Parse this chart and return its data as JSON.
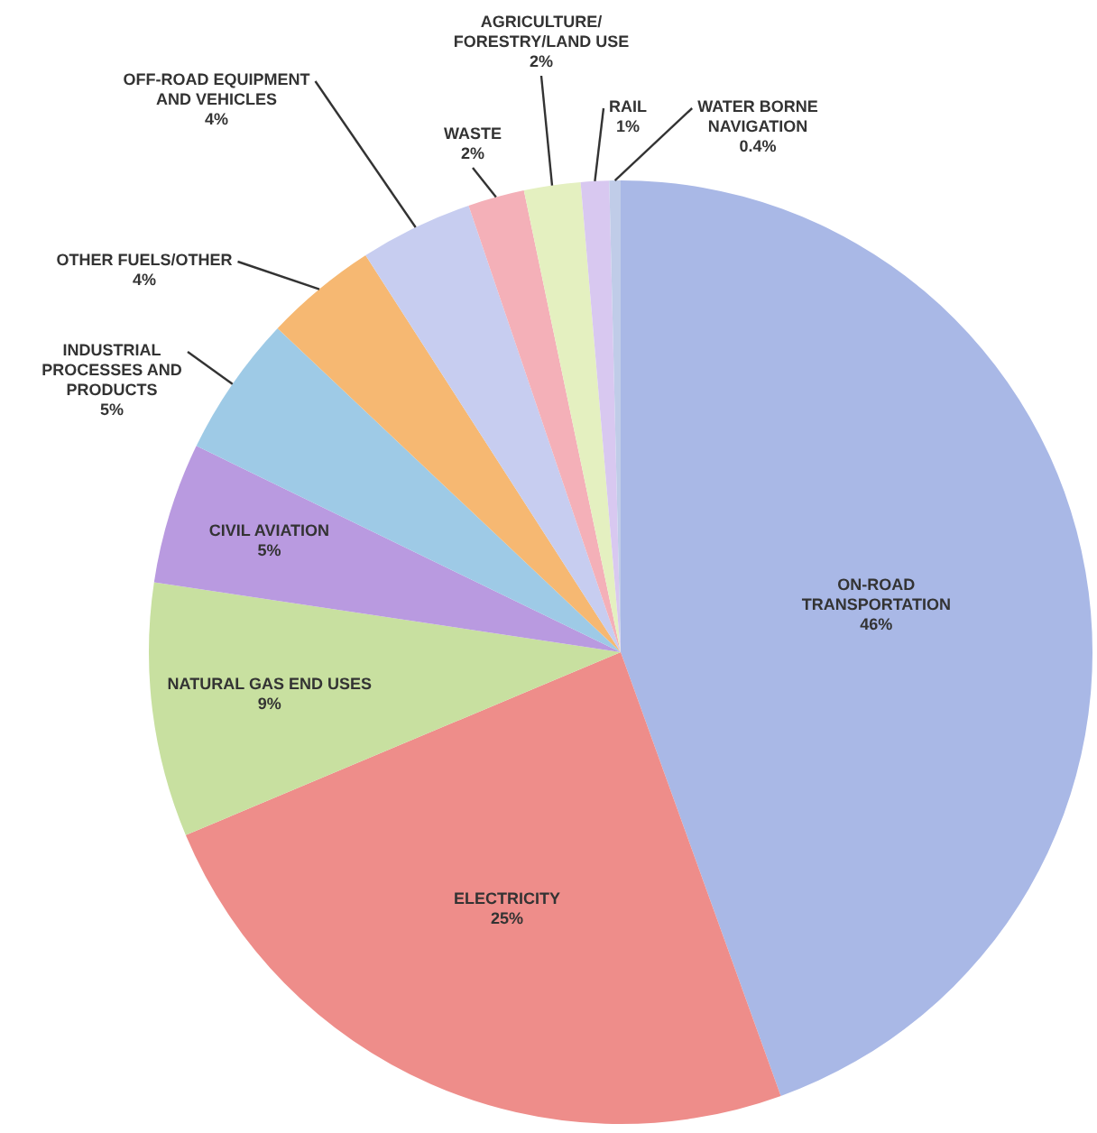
{
  "chart_data": {
    "type": "pie",
    "categories": [
      "ON-ROAD TRANSPORTATION",
      "ELECTRICITY",
      "NATURAL GAS END USES",
      "CIVIL AVIATION",
      "INDUSTRIAL PROCESSES AND PRODUCTS",
      "OTHER FUELS/OTHER",
      "OFF-ROAD EQUIPMENT AND VEHICLES",
      "WASTE",
      "AGRICULTURE/ FORESTRY/LAND USE",
      "RAIL",
      "WATER BORNE NAVIGATION"
    ],
    "values": [
      46,
      25,
      9,
      5,
      5,
      4,
      4,
      2,
      2,
      1,
      0.4
    ],
    "value_labels": [
      "46%",
      "25%",
      "9%",
      "5%",
      "5%",
      "4%",
      "4%",
      "2%",
      "2%",
      "1%",
      "0.4%"
    ],
    "colors": [
      "#a9b8e6",
      "#ee8d8a",
      "#c8e0a0",
      "#b99ae0",
      "#9ecae6",
      "#f6b872",
      "#c7cdf0",
      "#f4b0b8",
      "#e4f0c0",
      "#d8c8f0",
      "#c0cce8"
    ],
    "legend": false
  }
}
